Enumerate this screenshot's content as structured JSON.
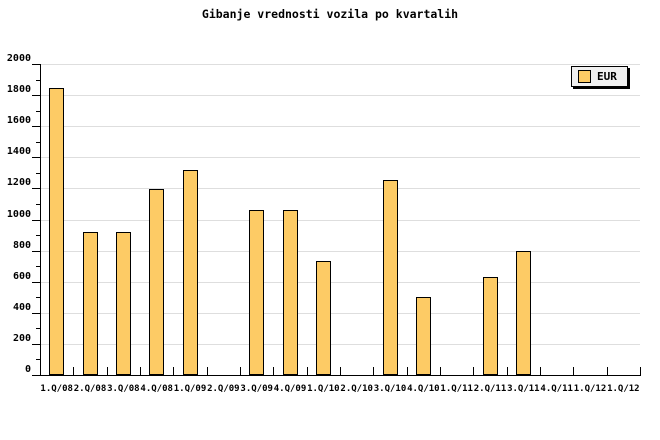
{
  "chart_data": {
    "type": "bar",
    "title": "Gibanje vrednosti vozila po kvartalih",
    "legend": [
      {
        "label": "EUR",
        "color": "#FDCB65"
      }
    ],
    "legend_position": "top-right",
    "categories": [
      "1.Q/08",
      "2.Q/08",
      "3.Q/08",
      "4.Q/08",
      "1.Q/09",
      "2.Q/09",
      "3.Q/09",
      "4.Q/09",
      "1.Q/10",
      "2.Q/10",
      "3.Q/10",
      "4.Q/10",
      "1.Q/11",
      "2.Q/11",
      "3.Q/11",
      "4.Q/11",
      "1.Q/12",
      "1.Q/12"
    ],
    "series": [
      {
        "name": "EUR",
        "values": [
          1845,
          920,
          920,
          1195,
          1320,
          null,
          1060,
          1060,
          730,
          null,
          1255,
          500,
          null,
          630,
          795,
          null,
          null,
          null
        ]
      }
    ],
    "ylim": [
      0,
      2000
    ],
    "y_ticks": [
      0,
      200,
      400,
      600,
      800,
      1000,
      1200,
      1400,
      1600,
      1800,
      2000
    ],
    "y_minor_step": 100,
    "grid": "horizontal",
    "xlabel": "",
    "ylabel": "",
    "colors": {
      "bar_fill": "#FDCB65",
      "bar_border": "#000000",
      "grid": "#DEDEDE",
      "axis": "#000000",
      "legend_bg": "#F0F0F0",
      "legend_shadow": "#000000",
      "text": "#000000",
      "background": "#FFFFFF"
    }
  }
}
